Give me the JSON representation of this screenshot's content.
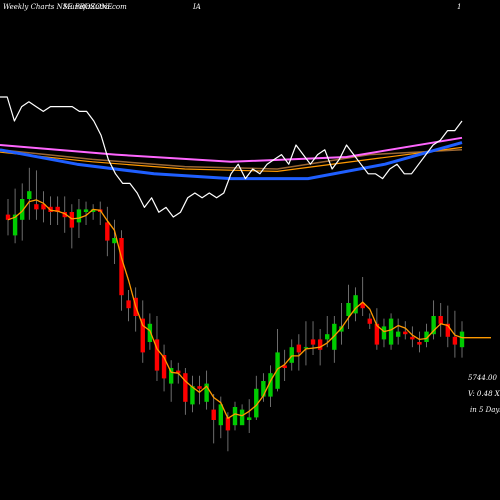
{
  "header": {
    "site": "Weekly Charts NSE PROZONE",
    "site_overlap": "MunafaSutra.com",
    "symbol": "IA",
    "page_marker": "1"
  },
  "info": {
    "price": "5744.00",
    "volume": "V: 0.48 X",
    "period": "in 5 Days"
  },
  "colors": {
    "background": "#000000",
    "up": "#00cc00",
    "down": "#ff0000",
    "price_line": "#ffffff",
    "ma_short": "#ff9900",
    "ma_blue": "#1f5fff",
    "ma_pink": "#ff66ff",
    "ma_brown": "#996633",
    "wick": "#888888"
  },
  "chart_data": [
    {
      "type": "line",
      "panel": "upper-indicator",
      "series": [
        {
          "role": "price-line",
          "values": [
            10,
            10,
            5,
            8,
            9,
            8,
            7,
            8,
            8,
            8,
            8,
            7,
            7,
            5,
            2,
            -3,
            -6,
            -8,
            -8,
            -10,
            -13,
            -11,
            -14,
            -13,
            -15,
            -14,
            -11,
            -10,
            -11,
            -10,
            -11,
            -10,
            -6,
            -4,
            -7,
            -5,
            -6,
            -4,
            -3,
            -2,
            -4,
            0,
            -2,
            -4,
            -2,
            -1,
            -5,
            -3,
            0,
            -2,
            -4,
            -6,
            -6,
            -7,
            -5,
            -4,
            -6,
            -6,
            -4,
            -2,
            0,
            1,
            3,
            3,
            5
          ]
        },
        {
          "role": "pink-ma",
          "values": [
            0.0,
            -2.0,
            -3.5,
            -2.5,
            1.5
          ]
        },
        {
          "role": "blue-ma",
          "values": [
            -1.0,
            -4.0,
            -6.0,
            -7.0,
            -7.0,
            -4.0,
            0.5
          ]
        },
        {
          "role": "brown-ma",
          "values": [
            -1.0,
            -3.0,
            -4.5,
            -5.0,
            -2.0,
            -1.0
          ]
        },
        {
          "role": "orange-ma",
          "values": [
            -1.5,
            -3.5,
            -5.0,
            -5.5,
            -3.0,
            -0.5
          ]
        }
      ]
    },
    {
      "type": "candlestick",
      "panel": "price",
      "ohlc": [
        [
          54,
          52,
          60,
          46
        ],
        [
          46,
          54,
          64,
          43
        ],
        [
          52,
          60,
          66,
          44
        ],
        [
          60,
          63,
          72,
          52
        ],
        [
          58,
          56,
          71,
          52
        ],
        [
          58,
          56,
          63,
          51
        ],
        [
          57,
          55,
          61,
          50
        ],
        [
          57,
          55,
          61,
          50
        ],
        [
          55,
          53,
          61,
          47
        ],
        [
          55,
          49,
          58,
          41
        ],
        [
          51,
          56,
          60,
          45
        ],
        [
          55,
          56,
          59,
          50
        ],
        [
          55,
          56,
          58,
          52
        ],
        [
          56,
          55,
          59,
          50
        ],
        [
          51,
          44,
          57,
          38
        ],
        [
          43,
          45,
          52,
          35
        ],
        [
          45,
          23,
          48,
          17
        ],
        [
          21,
          18,
          25,
          13
        ],
        [
          22,
          15,
          26,
          9
        ],
        [
          14,
          1,
          21,
          -3
        ],
        [
          5,
          12,
          16,
          2
        ],
        [
          6,
          -6,
          15,
          -10
        ],
        [
          0,
          -9,
          4,
          -14
        ],
        [
          -11,
          -5,
          -2,
          -18
        ],
        [
          -6,
          -7,
          -3,
          -11
        ],
        [
          -7,
          -18,
          -5,
          -23
        ],
        [
          -19,
          -12,
          -8,
          -22
        ],
        [
          -12,
          -13,
          -8,
          -19
        ],
        [
          -18,
          -11,
          -6,
          -21
        ],
        [
          -21,
          -25,
          -15,
          -34
        ],
        [
          -27,
          -19,
          -16,
          -32
        ],
        [
          -24,
          -29,
          -22,
          -37
        ],
        [
          -27,
          -20,
          -18,
          -29
        ],
        [
          -27,
          -21,
          -19,
          -25
        ],
        [
          -25,
          -24,
          -17,
          -30
        ],
        [
          -24,
          -13,
          -8,
          -25
        ],
        [
          -16,
          -10,
          -7,
          -18
        ],
        [
          -16,
          -7,
          -4,
          -20
        ],
        [
          -13,
          1,
          10,
          -14
        ],
        [
          -4,
          -5,
          2,
          -10
        ],
        [
          -3,
          3,
          6,
          -6
        ],
        [
          4,
          1,
          8,
          -6
        ],
        [
          3,
          3,
          13,
          -4
        ],
        [
          6,
          4,
          13,
          0
        ],
        [
          6,
          2,
          10,
          -4
        ],
        [
          6,
          8,
          15,
          3
        ],
        [
          2,
          12,
          15,
          -3
        ],
        [
          9,
          11,
          20,
          4
        ],
        [
          15,
          20,
          27,
          10
        ],
        [
          16,
          23,
          26,
          13
        ],
        [
          20,
          18,
          30,
          15
        ],
        [
          14,
          12,
          16,
          10
        ],
        [
          12,
          4,
          18,
          2
        ],
        [
          6,
          11,
          14,
          3
        ],
        [
          4,
          14,
          16,
          2
        ],
        [
          7,
          9,
          14,
          4
        ],
        [
          9,
          8,
          13,
          6
        ],
        [
          7,
          6,
          11,
          3
        ],
        [
          5,
          4,
          9,
          1
        ],
        [
          5,
          9,
          12,
          3
        ],
        [
          8,
          15,
          21,
          6
        ],
        [
          15,
          12,
          20,
          7
        ],
        [
          12,
          7,
          19,
          3
        ],
        [
          7,
          4,
          17,
          -1
        ],
        [
          3,
          9,
          13,
          -1
        ]
      ]
    }
  ]
}
